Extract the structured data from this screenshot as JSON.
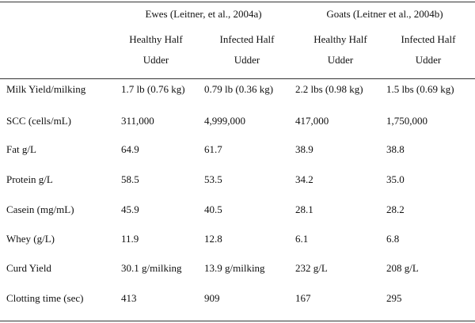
{
  "header": {
    "groups": [
      "Ewes (Leitner, et al., 2004a)",
      "Goats (Leitner et al., 2004b)"
    ],
    "columns": [
      [
        "Healthy Half",
        "Udder"
      ],
      [
        "Infected Half",
        "Udder"
      ],
      [
        "Healthy Half",
        "Udder"
      ],
      [
        "Infected Half",
        "Udder"
      ]
    ]
  },
  "table": {
    "rows": [
      [
        "Milk Yield/milking",
        "1.7 lb (0.76 kg)",
        "0.79 lb (0.36 kg)",
        "2.2 lbs (0.98 kg)",
        "1.5 lbs (0.69 kg)"
      ],
      [
        "SCC (cells/mL)",
        "311,000",
        "4,999,000",
        "417,000",
        "1,750,000"
      ],
      [
        "Fat g/L",
        "64.9",
        "61.7",
        "38.9",
        "38.8"
      ],
      [
        "Protein g/L",
        "58.5",
        "53.5",
        "34.2",
        "35.0"
      ],
      [
        "Casein (mg/mL)",
        "45.9",
        "40.5",
        "28.1",
        "28.2"
      ],
      [
        "Whey (g/L)",
        "11.9",
        "12.8",
        "6.1",
        "6.8"
      ],
      [
        "Curd Yield",
        "30.1 g/milking",
        "13.9 g/milking",
        "232 g/L",
        "208 g/L"
      ],
      [
        "Clotting time (sec)",
        "413",
        "909",
        "167",
        "295"
      ]
    ]
  }
}
